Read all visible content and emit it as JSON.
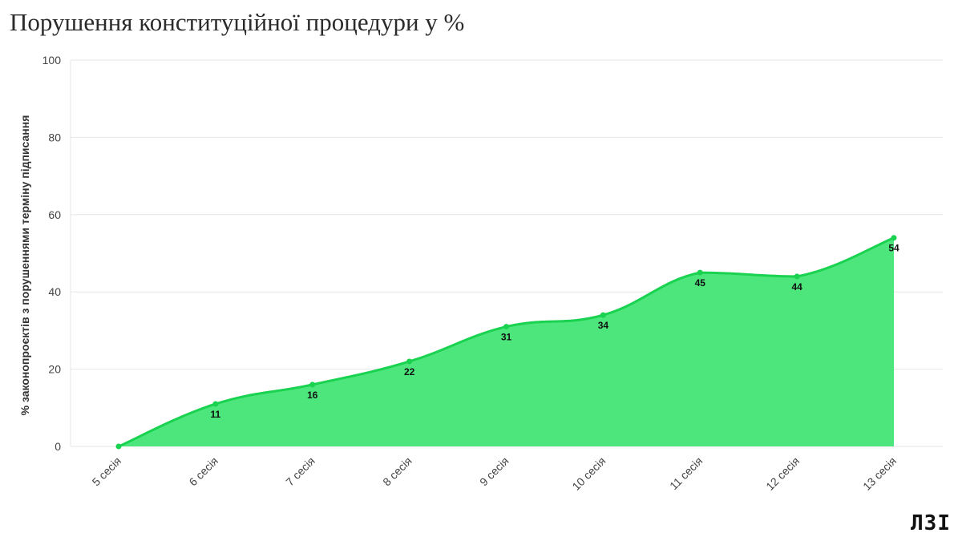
{
  "title": "Порушення конституційної процедури у %",
  "logo": "ЛЗІ",
  "colors": {
    "area": "#4ce67c",
    "line": "#19d24f",
    "grid": "#e6e6e6"
  },
  "chart_data": {
    "type": "area",
    "title": "Порушення конституційної процедури у %",
    "ylabel": "% законопроєктів з порушеннями терміну підписання",
    "xlabel": "",
    "categories": [
      "5 сесія",
      "6 сесія",
      "7 сесія",
      "8 сесія",
      "9 сесія",
      "10 сесія",
      "11 сесія",
      "12 сесія",
      "13 сесія"
    ],
    "values": [
      0,
      11,
      16,
      22,
      31,
      34,
      45,
      44,
      54
    ],
    "data_labels": [
      "",
      "11",
      "16",
      "22",
      "31",
      "34",
      "45",
      "44",
      "54"
    ],
    "ylim": [
      0,
      100
    ],
    "yticks": [
      0,
      20,
      40,
      60,
      80,
      100
    ],
    "grid": true,
    "legend": "none"
  }
}
